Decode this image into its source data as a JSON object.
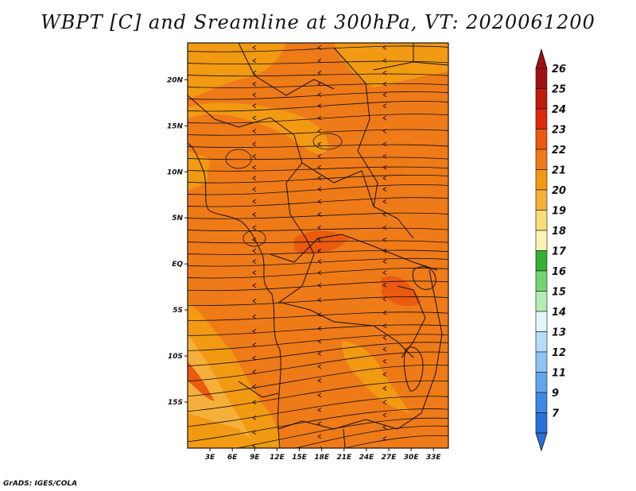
{
  "title": "WBPT [C] and Sreamline at 300hPa, VT: 2020061200",
  "credit": "GrADS: IGES/COLA",
  "map": {
    "lon_range": [
      0,
      35
    ],
    "lat_range": [
      -20,
      24
    ],
    "x_ticks": [
      {
        "lon": 3,
        "label": "3E"
      },
      {
        "lon": 6,
        "label": "6E"
      },
      {
        "lon": 9,
        "label": "9E"
      },
      {
        "lon": 12,
        "label": "12E"
      },
      {
        "lon": 15,
        "label": "15E"
      },
      {
        "lon": 18,
        "label": "18E"
      },
      {
        "lon": 21,
        "label": "21E"
      },
      {
        "lon": 24,
        "label": "24E"
      },
      {
        "lon": 27,
        "label": "27E"
      },
      {
        "lon": 30,
        "label": "30E"
      },
      {
        "lon": 33,
        "label": "33E"
      }
    ],
    "y_ticks": [
      {
        "lat": 20,
        "label": "20N"
      },
      {
        "lat": 15,
        "label": "15N"
      },
      {
        "lat": 10,
        "label": "10N"
      },
      {
        "lat": 5,
        "label": "5N"
      },
      {
        "lat": 0,
        "label": "EQ"
      },
      {
        "lat": -5,
        "label": "5S"
      },
      {
        "lat": -10,
        "label": "10S"
      },
      {
        "lat": -15,
        "label": "15S"
      }
    ],
    "field_colors": {
      "v20": "#f5b03c",
      "v21": "#f29a12",
      "v22": "#ef7a18",
      "v23": "#ea5a10"
    },
    "streamline_color": "#111111"
  },
  "colorbar": {
    "levels": [
      {
        "label": "26",
        "color": "#a01010"
      },
      {
        "label": "25",
        "color": "#c0190e"
      },
      {
        "label": "24",
        "color": "#dd2a10"
      },
      {
        "label": "23",
        "color": "#ea5a10"
      },
      {
        "label": "22",
        "color": "#ef7a18"
      },
      {
        "label": "21",
        "color": "#f29a12"
      },
      {
        "label": "20",
        "color": "#f5b03c"
      },
      {
        "label": "19",
        "color": "#f8dc78"
      },
      {
        "label": "18",
        "color": "#fbf3b4"
      },
      {
        "label": "17",
        "color": "#34b034"
      },
      {
        "label": "16",
        "color": "#74d474"
      },
      {
        "label": "15",
        "color": "#b4ecb4"
      },
      {
        "label": "14",
        "color": "#e2f6fc"
      },
      {
        "label": "13",
        "color": "#b6dcf8"
      },
      {
        "label": "12",
        "color": "#8cc4f4"
      },
      {
        "label": "11",
        "color": "#62a6ee"
      },
      {
        "label": "9",
        "color": "#3e88e8"
      },
      {
        "label": "7",
        "color": "#2a70dc"
      }
    ],
    "top_arrow_color": "#a01010",
    "bottom_arrow_color": "#2a70dc"
  }
}
